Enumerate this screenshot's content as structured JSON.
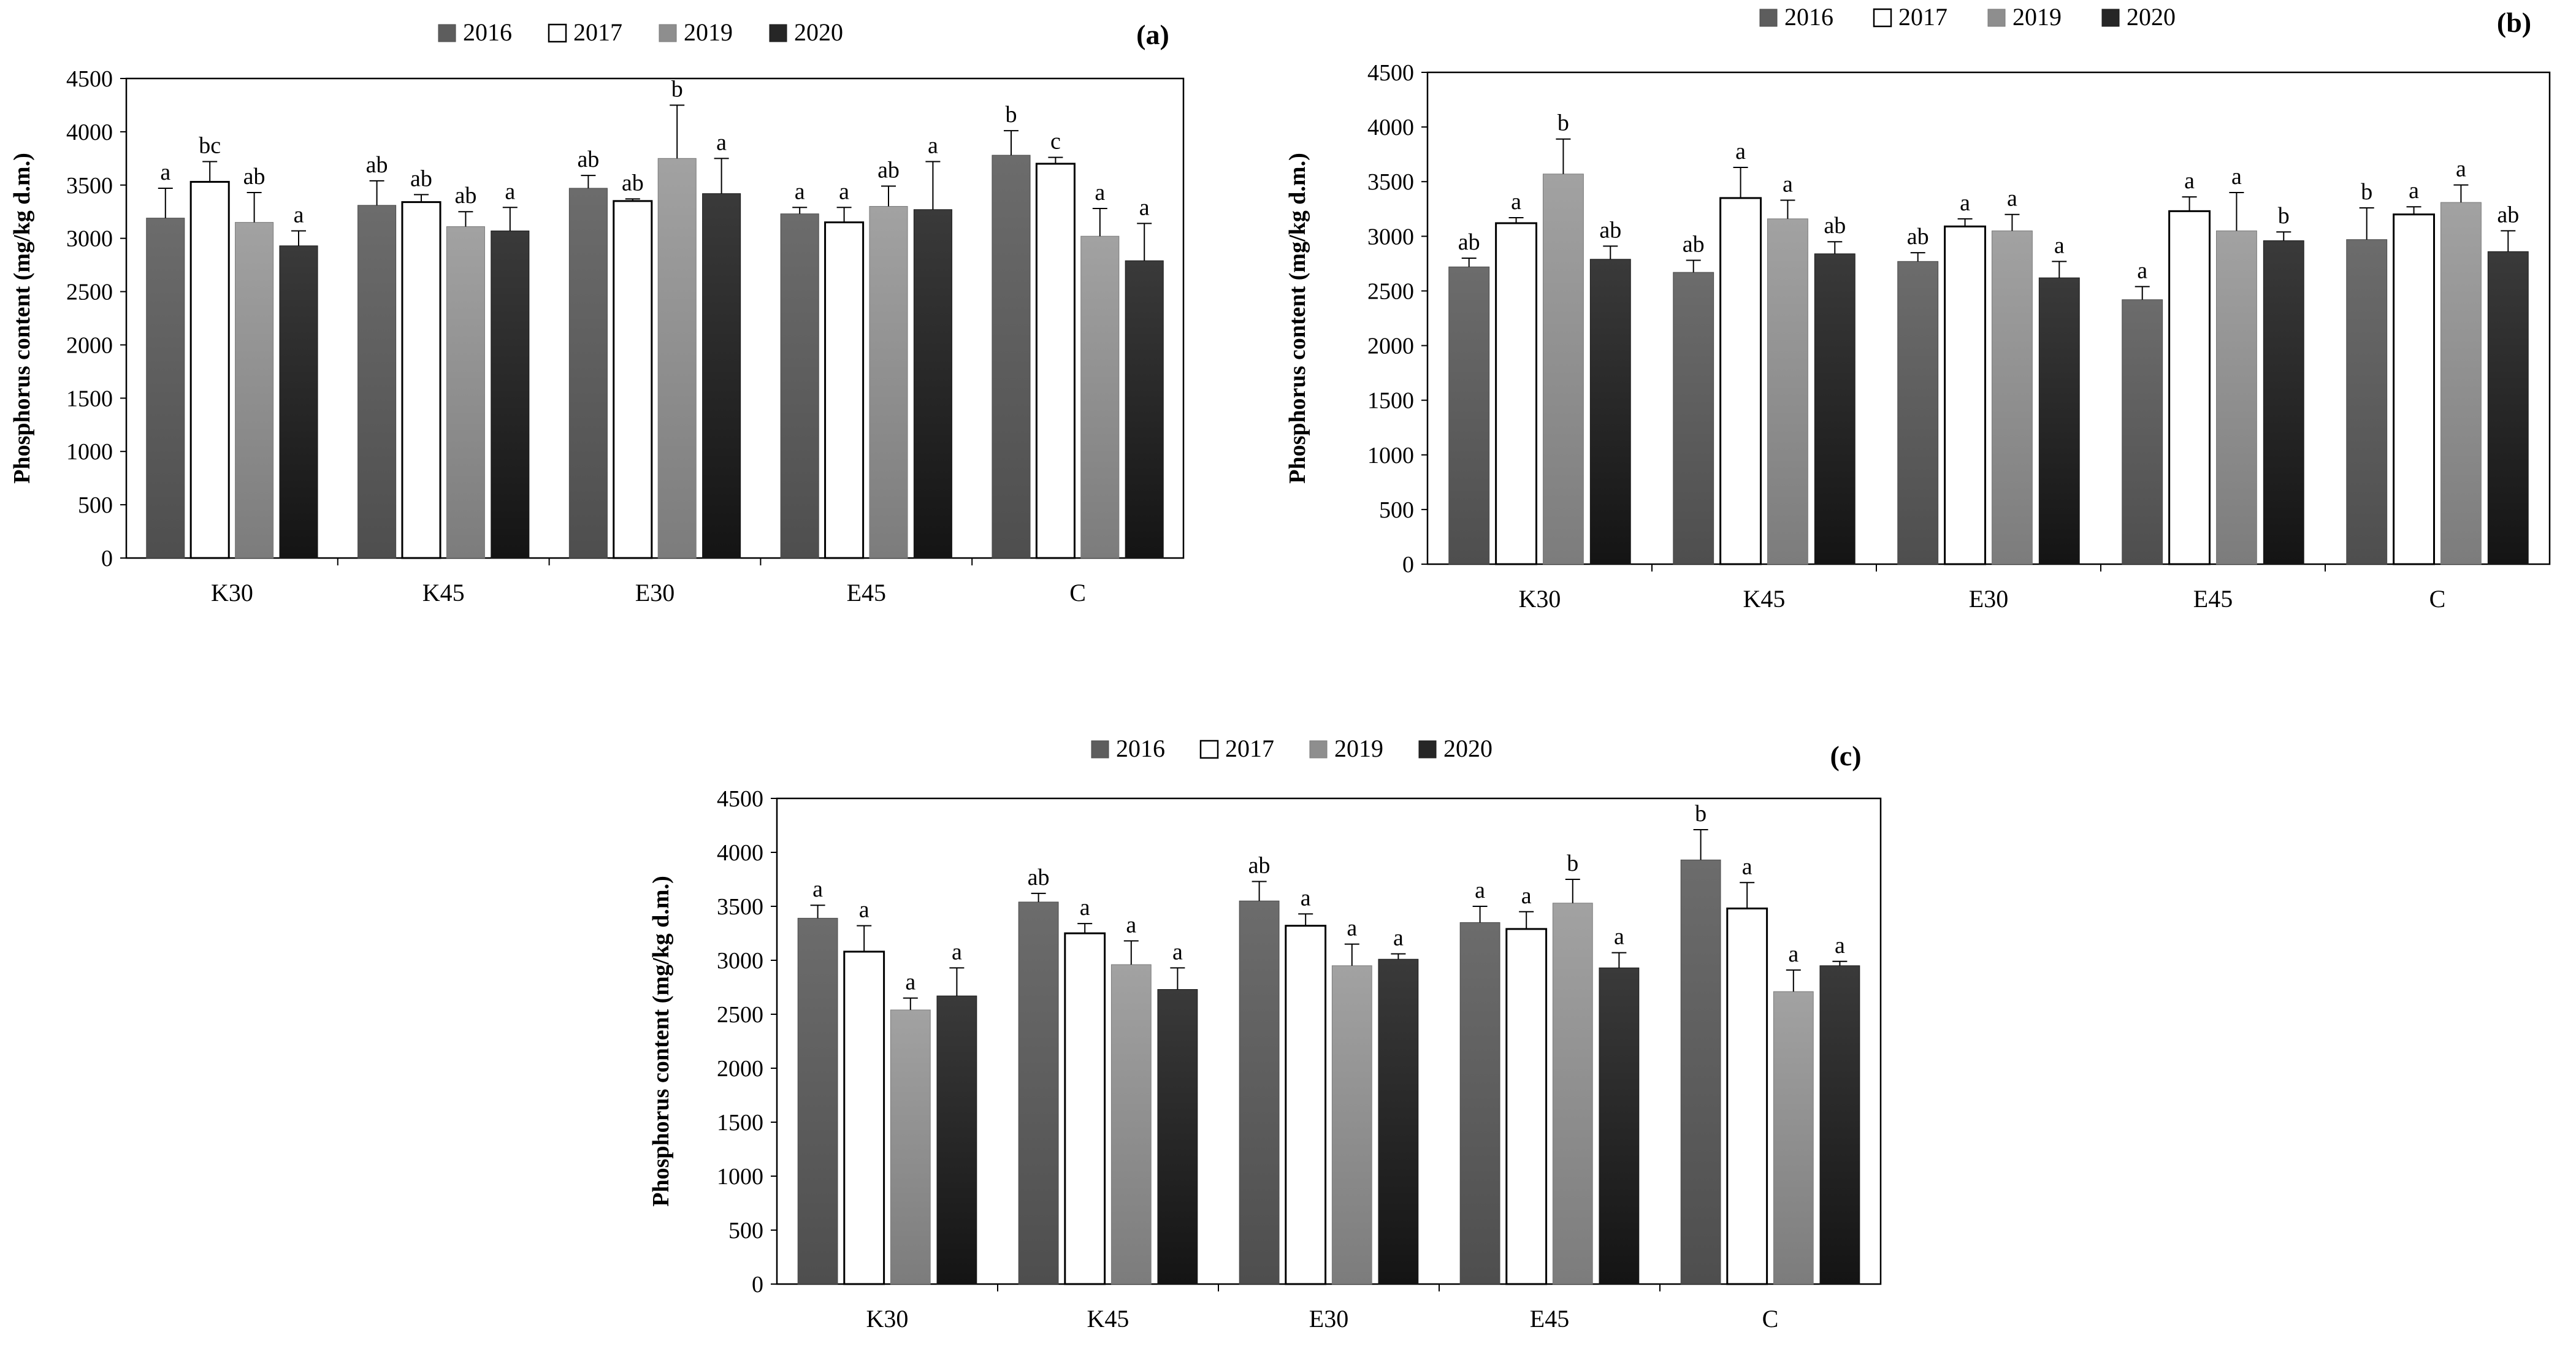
{
  "styles": {
    "series_colors": [
      "#5d5d5d",
      "#ffffff",
      "#8e8e8e",
      "#262626"
    ],
    "series_strokes": [
      "#4a4a4a",
      "#000000",
      "#7a7a7a",
      "#1a1a1a"
    ]
  },
  "chart_data": [
    {
      "panel": "(a)",
      "type": "bar",
      "ylabel": "Phosphorus content (mg/kg d.m.)",
      "xlabel": "",
      "ylim": [
        0,
        4500
      ],
      "yticks": [
        0,
        500,
        1000,
        1500,
        2000,
        2500,
        3000,
        3500,
        4000,
        4500
      ],
      "categories": [
        "K30",
        "K45",
        "E30",
        "E45",
        "C"
      ],
      "legend_position": "top",
      "series": [
        {
          "name": "2016",
          "values": [
            3190,
            3310,
            3470,
            3230,
            3780
          ],
          "errors": [
            280,
            230,
            120,
            60,
            230
          ],
          "labels": [
            "a",
            "ab",
            "ab",
            "a",
            "b"
          ]
        },
        {
          "name": "2017",
          "values": [
            3530,
            3340,
            3350,
            3150,
            3700
          ],
          "errors": [
            190,
            70,
            20,
            140,
            60
          ],
          "labels": [
            "bc",
            "ab",
            "ab",
            "a",
            "c"
          ]
        },
        {
          "name": "2019",
          "values": [
            3150,
            3110,
            3750,
            3300,
            3020
          ],
          "errors": [
            280,
            140,
            500,
            190,
            260
          ],
          "labels": [
            "ab",
            "ab",
            "b",
            "ab",
            "a"
          ]
        },
        {
          "name": "2020",
          "values": [
            2930,
            3070,
            3420,
            3270,
            2790
          ],
          "errors": [
            140,
            220,
            330,
            450,
            350
          ],
          "labels": [
            "a",
            "a",
            "a",
            "a",
            "a"
          ]
        }
      ]
    },
    {
      "panel": "(b)",
      "type": "bar",
      "ylabel": "Phosphorus content (mg/kg d.m.)",
      "xlabel": "",
      "ylim": [
        0,
        4500
      ],
      "yticks": [
        0,
        500,
        1000,
        1500,
        2000,
        2500,
        3000,
        3500,
        4000,
        4500
      ],
      "categories": [
        "K30",
        "K45",
        "E30",
        "E45",
        "C"
      ],
      "legend_position": "top",
      "series": [
        {
          "name": "2016",
          "values": [
            2720,
            2670,
            2770,
            2420,
            2970
          ],
          "errors": [
            80,
            110,
            80,
            120,
            290
          ],
          "labels": [
            "ab",
            "ab",
            "ab",
            "a",
            "b"
          ]
        },
        {
          "name": "2017",
          "values": [
            3120,
            3350,
            3090,
            3230,
            3200
          ],
          "errors": [
            50,
            280,
            70,
            130,
            70
          ],
          "labels": [
            "a",
            "a",
            "a",
            "a",
            "a"
          ]
        },
        {
          "name": "2019",
          "values": [
            3570,
            3160,
            3050,
            3050,
            3310
          ],
          "errors": [
            320,
            170,
            150,
            350,
            160
          ],
          "labels": [
            "b",
            "a",
            "a",
            "a",
            "a"
          ]
        },
        {
          "name": "2020",
          "values": [
            2790,
            2840,
            2620,
            2960,
            2860
          ],
          "errors": [
            120,
            110,
            150,
            80,
            190
          ],
          "labels": [
            "ab",
            "ab",
            "a",
            "b",
            "ab"
          ]
        }
      ]
    },
    {
      "panel": "(c)",
      "type": "bar",
      "ylabel": "Phosphorus content (mg/kg d.m.)",
      "xlabel": "",
      "ylim": [
        0,
        4500
      ],
      "yticks": [
        0,
        500,
        1000,
        1500,
        2000,
        2500,
        3000,
        3500,
        4000,
        4500
      ],
      "categories": [
        "K30",
        "K45",
        "E30",
        "E45",
        "C"
      ],
      "legend_position": "top",
      "series": [
        {
          "name": "2016",
          "values": [
            3390,
            3540,
            3550,
            3350,
            3930
          ],
          "errors": [
            120,
            80,
            180,
            150,
            280
          ],
          "labels": [
            "a",
            "ab",
            "ab",
            "a",
            "b"
          ]
        },
        {
          "name": "2017",
          "values": [
            3080,
            3250,
            3320,
            3290,
            3480
          ],
          "errors": [
            240,
            90,
            110,
            160,
            240
          ],
          "labels": [
            "a",
            "a",
            "a",
            "a",
            "a"
          ]
        },
        {
          "name": "2019",
          "values": [
            2540,
            2960,
            2950,
            3530,
            2710
          ],
          "errors": [
            110,
            220,
            200,
            220,
            200
          ],
          "labels": [
            "a",
            "a",
            "a",
            "b",
            "a"
          ]
        },
        {
          "name": "2020",
          "values": [
            2670,
            2730,
            3010,
            2930,
            2950
          ],
          "errors": [
            260,
            200,
            50,
            140,
            40
          ],
          "labels": [
            "a",
            "a",
            "a",
            "a",
            "a"
          ]
        }
      ]
    }
  ]
}
